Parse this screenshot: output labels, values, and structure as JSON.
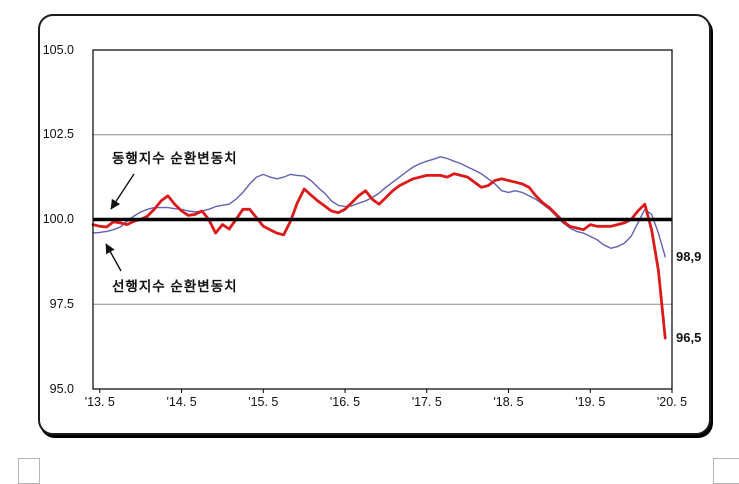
{
  "chart_data": {
    "type": "line",
    "title": "",
    "y_axis": {
      "range": [
        95.0,
        105.0
      ],
      "tick_values": [
        105.0,
        102.5,
        100.0,
        97.5,
        95.0
      ],
      "tick_labels": [
        "105.0",
        "102.5",
        "100.0",
        "97.5",
        "95.0"
      ]
    },
    "x_axis": {
      "tick_labels": [
        "'13. 5",
        "'14. 5",
        "'15. 5",
        "'16. 5",
        "'17. 5",
        "'18. 5",
        "'19. 5",
        "'20. 5"
      ],
      "tick_month_offsets": [
        1,
        13,
        25,
        37,
        49,
        61,
        73,
        85
      ],
      "axis_month_span": 85
    },
    "grid": "horizontal-only",
    "legend_position": "none",
    "reference_line": 100.0,
    "gridline_values": [
      102.5,
      97.5
    ],
    "series": [
      {
        "name": "선행지수 순환변동치",
        "color": "#6161b4",
        "line_width": 1.4,
        "values": [
          99.6,
          99.62,
          99.65,
          99.7,
          99.78,
          99.95,
          100.1,
          100.22,
          100.3,
          100.35,
          100.35,
          100.35,
          100.32,
          100.3,
          100.25,
          100.22,
          100.25,
          100.3,
          100.38,
          100.42,
          100.45,
          100.6,
          100.8,
          101.05,
          101.25,
          101.33,
          101.25,
          101.2,
          101.25,
          101.33,
          101.3,
          101.28,
          101.15,
          100.95,
          100.78,
          100.55,
          100.42,
          100.38,
          100.4,
          100.48,
          100.55,
          100.65,
          100.78,
          100.95,
          101.1,
          101.25,
          101.4,
          101.55,
          101.65,
          101.72,
          101.78,
          101.85,
          101.8,
          101.72,
          101.65,
          101.55,
          101.45,
          101.35,
          101.2,
          101.05,
          100.85,
          100.8,
          100.85,
          100.8,
          100.7,
          100.6,
          100.45,
          100.3,
          100.1,
          99.9,
          99.75,
          99.65,
          99.6,
          99.5,
          99.4,
          99.25,
          99.15,
          99.2,
          99.3,
          99.5,
          99.9,
          100.3,
          100.15,
          99.6,
          98.9
        ]
      },
      {
        "name": "동행지수 순환변동치",
        "color": "#dc1a1a",
        "line_width": 2.8,
        "values": [
          99.85,
          99.8,
          99.78,
          99.93,
          99.9,
          99.85,
          99.95,
          100.0,
          100.1,
          100.3,
          100.55,
          100.7,
          100.45,
          100.25,
          100.12,
          100.15,
          100.25,
          100.0,
          99.6,
          99.85,
          99.72,
          100.0,
          100.3,
          100.3,
          100.05,
          99.8,
          99.7,
          99.6,
          99.55,
          99.95,
          100.5,
          100.9,
          100.72,
          100.55,
          100.4,
          100.25,
          100.2,
          100.3,
          100.5,
          100.7,
          100.85,
          100.6,
          100.45,
          100.65,
          100.85,
          101.0,
          101.1,
          101.2,
          101.25,
          101.3,
          101.3,
          101.3,
          101.25,
          101.35,
          101.3,
          101.25,
          101.1,
          100.95,
          101.0,
          101.15,
          101.2,
          101.15,
          101.1,
          101.05,
          100.95,
          100.7,
          100.5,
          100.35,
          100.15,
          99.95,
          99.8,
          99.75,
          99.7,
          99.85,
          99.8,
          99.8,
          99.8,
          99.85,
          99.9,
          100.0,
          100.25,
          100.45,
          99.7,
          98.5,
          96.5
        ]
      }
    ],
    "annotations": [
      {
        "text": "동행지수 순환변동치",
        "points_to": "red coincident-index line"
      },
      {
        "text": "선행지수 순환변동치",
        "points_to": "blue leading-index line"
      }
    ],
    "end_labels": [
      {
        "text": "98,9",
        "value": 98.9,
        "series": "선행지수 순환변동치"
      },
      {
        "text": "96,5",
        "value": 96.5,
        "series": "동행지수 순환변동치"
      }
    ]
  }
}
